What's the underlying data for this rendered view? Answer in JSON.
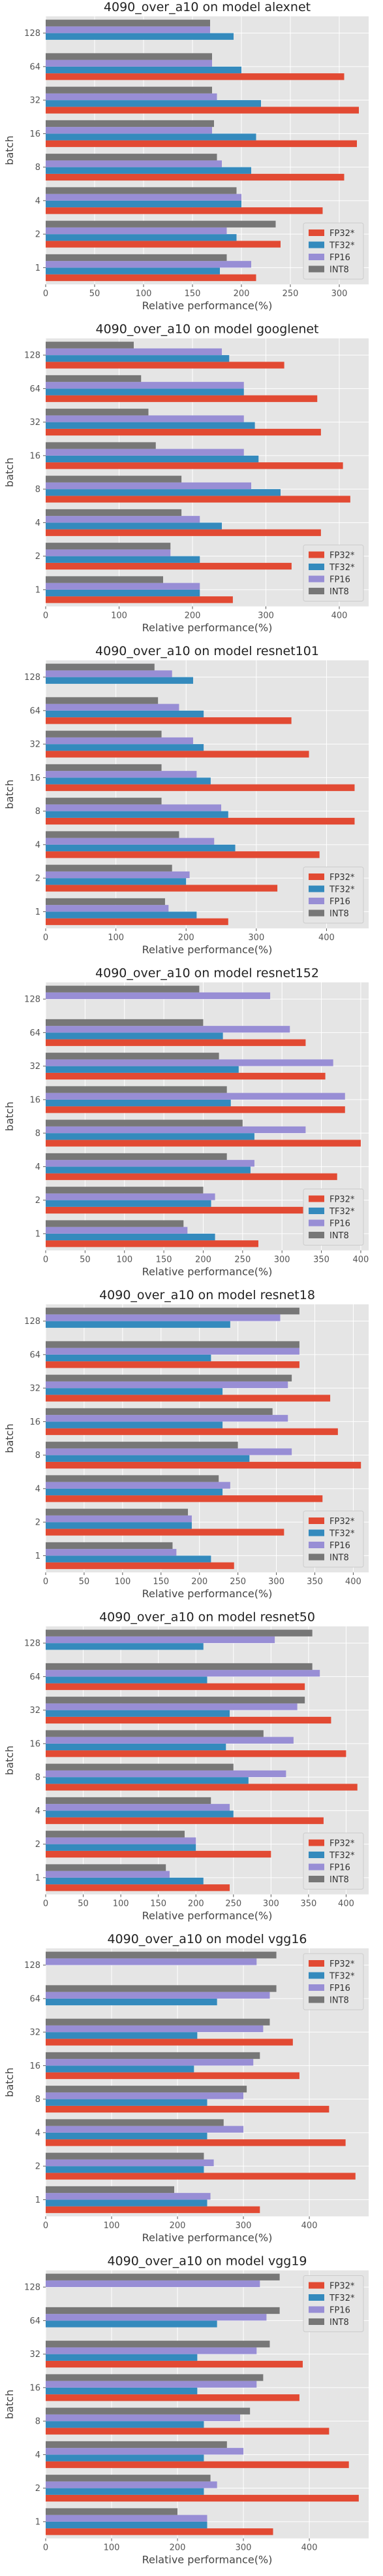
{
  "chart_data": [
    {
      "type": "bar",
      "title": "4090_over_a10 on model alexnet",
      "xlabel": "Relative performance(%)",
      "ylabel": "batch",
      "categories": [
        "1",
        "2",
        "4",
        "8",
        "16",
        "32",
        "64",
        "128"
      ],
      "series": [
        {
          "name": "FP32*",
          "color": "#E24A33",
          "values": [
            215,
            240,
            283,
            305,
            318,
            320,
            305,
            0
          ]
        },
        {
          "name": "TF32*",
          "color": "#348ABD",
          "values": [
            178,
            195,
            200,
            210,
            215,
            220,
            200,
            192
          ]
        },
        {
          "name": "FP16",
          "color": "#988ED5",
          "values": [
            210,
            185,
            200,
            180,
            170,
            175,
            170,
            168
          ]
        },
        {
          "name": "INT8",
          "color": "#777777",
          "values": [
            185,
            235,
            195,
            175,
            172,
            170,
            170,
            168
          ]
        }
      ],
      "xlim": [
        0,
        330
      ],
      "xticks": [
        0,
        50,
        100,
        150,
        200,
        250,
        300
      ],
      "legend": "lower right",
      "grid": true
    },
    {
      "type": "bar",
      "title": "4090_over_a10 on model googlenet",
      "xlabel": "Relative performance(%)",
      "ylabel": "batch",
      "categories": [
        "1",
        "2",
        "4",
        "8",
        "16",
        "32",
        "64",
        "128"
      ],
      "series": [
        {
          "name": "FP32*",
          "color": "#E24A33",
          "values": [
            255,
            335,
            375,
            415,
            405,
            375,
            370,
            325
          ]
        },
        {
          "name": "TF32*",
          "color": "#348ABD",
          "values": [
            210,
            210,
            240,
            320,
            290,
            285,
            270,
            250
          ]
        },
        {
          "name": "FP16",
          "color": "#988ED5",
          "values": [
            210,
            170,
            210,
            280,
            270,
            270,
            270,
            240
          ]
        },
        {
          "name": "INT8",
          "color": "#777777",
          "values": [
            160,
            170,
            185,
            185,
            150,
            140,
            130,
            120
          ]
        }
      ],
      "xlim": [
        0,
        440
      ],
      "xticks": [
        0,
        100,
        200,
        300,
        400
      ],
      "legend": "lower right",
      "grid": true
    },
    {
      "type": "bar",
      "title": "4090_over_a10 on model resnet101",
      "xlabel": "Relative performance(%)",
      "ylabel": "batch",
      "categories": [
        "1",
        "2",
        "4",
        "8",
        "16",
        "32",
        "64",
        "128"
      ],
      "series": [
        {
          "name": "FP32*",
          "color": "#E24A33",
          "values": [
            260,
            330,
            390,
            440,
            440,
            375,
            350,
            0
          ]
        },
        {
          "name": "TF32*",
          "color": "#348ABD",
          "values": [
            215,
            200,
            270,
            260,
            235,
            225,
            225,
            210
          ]
        },
        {
          "name": "FP16",
          "color": "#988ED5",
          "values": [
            175,
            205,
            240,
            250,
            215,
            210,
            190,
            180
          ]
        },
        {
          "name": "INT8",
          "color": "#777777",
          "values": [
            170,
            180,
            190,
            165,
            165,
            165,
            160,
            155
          ]
        }
      ],
      "xlim": [
        0,
        460
      ],
      "xticks": [
        0,
        100,
        200,
        300,
        400
      ],
      "legend": "lower right",
      "grid": true
    },
    {
      "type": "bar",
      "title": "4090_over_a10 on model resnet152",
      "xlabel": "Relative performance(%)",
      "ylabel": "batch",
      "categories": [
        "1",
        "2",
        "4",
        "8",
        "16",
        "32",
        "64",
        "128"
      ],
      "series": [
        {
          "name": "FP32*",
          "color": "#E24A33",
          "values": [
            270,
            330,
            370,
            400,
            380,
            355,
            330,
            0
          ]
        },
        {
          "name": "TF32*",
          "color": "#348ABD",
          "values": [
            215,
            210,
            260,
            265,
            235,
            245,
            225,
            0
          ]
        },
        {
          "name": "FP16",
          "color": "#988ED5",
          "values": [
            180,
            215,
            265,
            330,
            380,
            365,
            310,
            285
          ]
        },
        {
          "name": "INT8",
          "color": "#777777",
          "values": [
            175,
            200,
            230,
            250,
            230,
            220,
            200,
            195
          ]
        }
      ],
      "xlim": [
        0,
        410
      ],
      "xticks": [
        0,
        50,
        100,
        150,
        200,
        250,
        300,
        350,
        400
      ],
      "legend": "lower right",
      "grid": true
    },
    {
      "type": "bar",
      "title": "4090_over_a10 on model resnet18",
      "xlabel": "Relative performance(%)",
      "ylabel": "batch",
      "categories": [
        "1",
        "2",
        "4",
        "8",
        "16",
        "32",
        "64",
        "128"
      ],
      "series": [
        {
          "name": "FP32*",
          "color": "#E24A33",
          "values": [
            245,
            310,
            360,
            410,
            380,
            370,
            330,
            0
          ]
        },
        {
          "name": "TF32*",
          "color": "#348ABD",
          "values": [
            215,
            190,
            230,
            265,
            230,
            230,
            215,
            240
          ]
        },
        {
          "name": "FP16",
          "color": "#988ED5",
          "values": [
            170,
            190,
            240,
            320,
            315,
            315,
            330,
            305
          ]
        },
        {
          "name": "INT8",
          "color": "#777777",
          "values": [
            165,
            185,
            225,
            250,
            295,
            320,
            330,
            330
          ]
        }
      ],
      "xlim": [
        0,
        420
      ],
      "xticks": [
        0,
        50,
        100,
        150,
        200,
        250,
        300,
        350,
        400
      ],
      "legend": "lower right",
      "grid": true
    },
    {
      "type": "bar",
      "title": "4090_over_a10 on model resnet50",
      "xlabel": "Relative performance(%)",
      "ylabel": "batch",
      "categories": [
        "1",
        "2",
        "4",
        "8",
        "16",
        "32",
        "64",
        "128"
      ],
      "series": [
        {
          "name": "FP32*",
          "color": "#E24A33",
          "values": [
            245,
            300,
            370,
            415,
            400,
            380,
            345,
            0
          ]
        },
        {
          "name": "TF32*",
          "color": "#348ABD",
          "values": [
            210,
            200,
            250,
            270,
            240,
            245,
            215,
            210
          ]
        },
        {
          "name": "FP16",
          "color": "#988ED5",
          "values": [
            165,
            200,
            245,
            320,
            330,
            335,
            365,
            305
          ]
        },
        {
          "name": "INT8",
          "color": "#777777",
          "values": [
            160,
            185,
            220,
            250,
            290,
            345,
            355,
            355
          ]
        }
      ],
      "xlim": [
        0,
        430
      ],
      "xticks": [
        0,
        50,
        100,
        150,
        200,
        250,
        300,
        350,
        400
      ],
      "legend": "lower right",
      "grid": true
    },
    {
      "type": "bar",
      "title": "4090_over_a10 on model vgg16",
      "xlabel": "Relative performance(%)",
      "ylabel": "batch",
      "categories": [
        "1",
        "2",
        "4",
        "8",
        "16",
        "32",
        "64",
        "128"
      ],
      "series": [
        {
          "name": "FP32*",
          "color": "#E24A33",
          "values": [
            325,
            470,
            455,
            430,
            385,
            375,
            0,
            0
          ]
        },
        {
          "name": "TF32*",
          "color": "#348ABD",
          "values": [
            245,
            240,
            245,
            245,
            225,
            230,
            260,
            0
          ]
        },
        {
          "name": "FP16",
          "color": "#988ED5",
          "values": [
            250,
            255,
            300,
            300,
            315,
            330,
            340,
            320
          ]
        },
        {
          "name": "INT8",
          "color": "#777777",
          "values": [
            195,
            240,
            270,
            305,
            325,
            340,
            350,
            350
          ]
        }
      ],
      "xlim": [
        0,
        490
      ],
      "xticks": [
        0,
        100,
        200,
        300,
        400
      ],
      "legend": "upper right",
      "grid": true
    },
    {
      "type": "bar",
      "title": "4090_over_a10 on model vgg19",
      "xlabel": "Relative performance(%)",
      "ylabel": "batch",
      "categories": [
        "1",
        "2",
        "4",
        "8",
        "16",
        "32",
        "64",
        "128"
      ],
      "series": [
        {
          "name": "FP32*",
          "color": "#E24A33",
          "values": [
            345,
            475,
            460,
            430,
            385,
            390,
            0,
            0
          ]
        },
        {
          "name": "TF32*",
          "color": "#348ABD",
          "values": [
            245,
            240,
            240,
            240,
            230,
            230,
            260,
            0
          ]
        },
        {
          "name": "FP16",
          "color": "#988ED5",
          "values": [
            245,
            260,
            300,
            295,
            320,
            320,
            335,
            325
          ]
        },
        {
          "name": "INT8",
          "color": "#777777",
          "values": [
            200,
            250,
            275,
            310,
            330,
            340,
            355,
            355
          ]
        }
      ],
      "xlim": [
        0,
        490
      ],
      "xticks": [
        0,
        100,
        200,
        300,
        400
      ],
      "legend": "upper right",
      "grid": true
    }
  ]
}
